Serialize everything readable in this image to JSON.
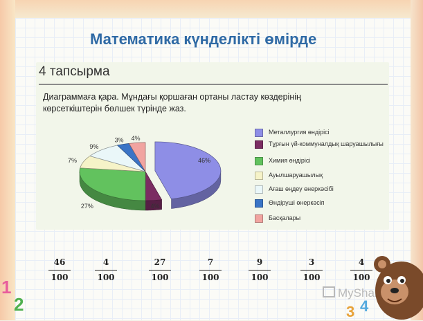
{
  "header": {
    "title": "Математика күнделікті өмірде"
  },
  "task": {
    "title": "4 тапсырма",
    "text": "Диаграммаға қара. Мұндағы қоршаған ортаны ластау көздерінің көрсеткіштерін бөлшек түрінде жаз."
  },
  "chart_data": {
    "type": "pie",
    "slices": [
      {
        "label": "Металлургия өндірісі",
        "value": 46,
        "display": "46%",
        "color": "#8e8ee6"
      },
      {
        "label": "Тұрғын үй-коммуналдық шаруашылығы",
        "value": 4,
        "display": "4%",
        "color": "#7b2d62"
      },
      {
        "label": "Химия өндірісі",
        "value": 27,
        "display": "27%",
        "color": "#62c25e"
      },
      {
        "label": "Ауылшаруашылық",
        "value": 7,
        "display": "7%",
        "color": "#f6f3c8"
      },
      {
        "label": "Ағаш өңдеу өнеркәсібі",
        "value": 9,
        "display": "9%",
        "color": "#eaf7f9"
      },
      {
        "label": "Өндіруші өнеркәсіп",
        "value": 3,
        "display": "3%",
        "color": "#3a74c6"
      },
      {
        "label": "Басқалары",
        "value": 4,
        "display": "4%",
        "color": "#f1a4a0"
      }
    ],
    "legend_placement": "right"
  },
  "fractions": [
    {
      "num": "46",
      "den": "100"
    },
    {
      "num": "4",
      "den": "100"
    },
    {
      "num": "27",
      "den": "100"
    },
    {
      "num": "7",
      "den": "100"
    },
    {
      "num": "9",
      "den": "100"
    },
    {
      "num": "3",
      "den": "100"
    },
    {
      "num": "4",
      "den": "100"
    }
  ],
  "watermark": {
    "text": "MyShared"
  }
}
